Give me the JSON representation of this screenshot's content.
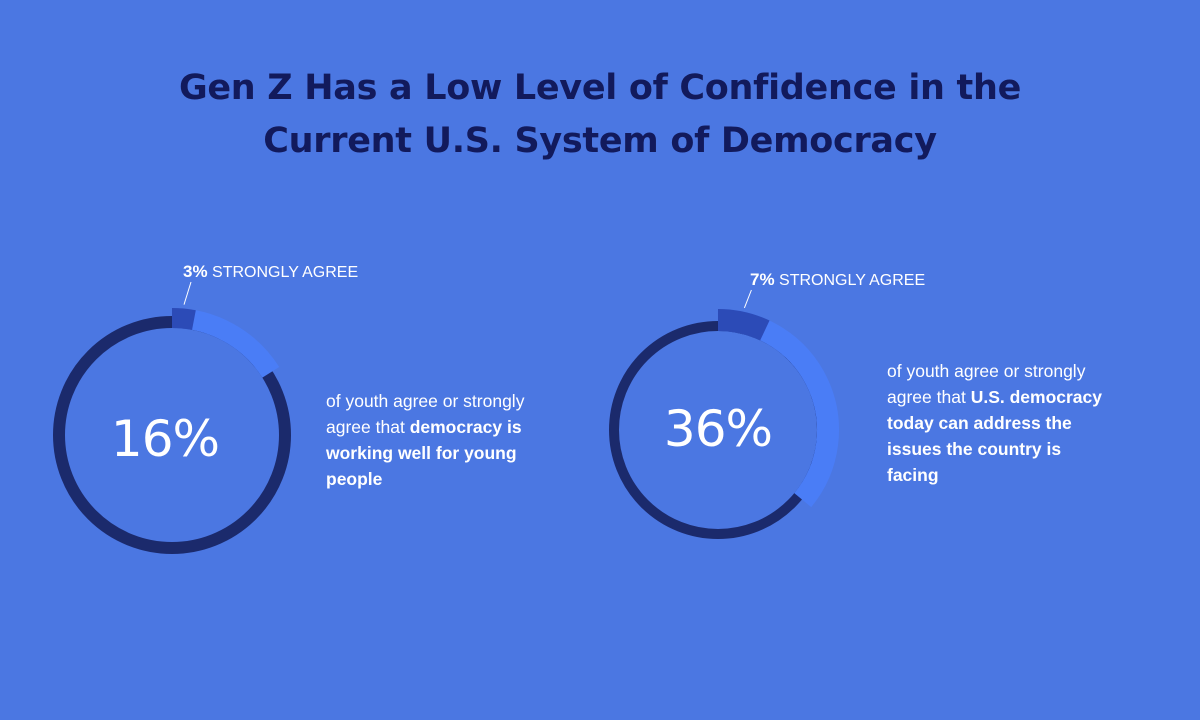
{
  "colors": {
    "background": "#4b77e2",
    "title": "#121a5c",
    "ring_track": "#1b2a6c",
    "ring_agree": "#4a7df6",
    "ring_strongly": "#2c4bb7",
    "text": "#ffffff"
  },
  "title": {
    "line1": "Gen Z Has a Low Level of Confidence in the",
    "line2": "Current U.S. System of Democracy"
  },
  "chart_data": [
    {
      "type": "pie",
      "title": "",
      "total_pct": 16,
      "total_label": "16%",
      "segments": [
        {
          "name": "strongly agree",
          "value": 3
        },
        {
          "name": "agree",
          "value": 13
        },
        {
          "name": "other",
          "value": 84
        }
      ],
      "callout": {
        "value": "3%",
        "label": "STRONGLY AGREE"
      },
      "description": {
        "plain": "of youth agree or strongly agree that",
        "bold": "democracy is working well for young people"
      }
    },
    {
      "type": "pie",
      "title": "",
      "total_pct": 36,
      "total_label": "36%",
      "segments": [
        {
          "name": "strongly agree",
          "value": 7
        },
        {
          "name": "agree",
          "value": 29
        },
        {
          "name": "other",
          "value": 64
        }
      ],
      "callout": {
        "value": "7%",
        "label": "STRONGLY AGREE"
      },
      "description": {
        "plain": "of youth agree or strongly agree  that",
        "bold": "U.S. democracy today can address the issues the country is facing"
      }
    }
  ]
}
